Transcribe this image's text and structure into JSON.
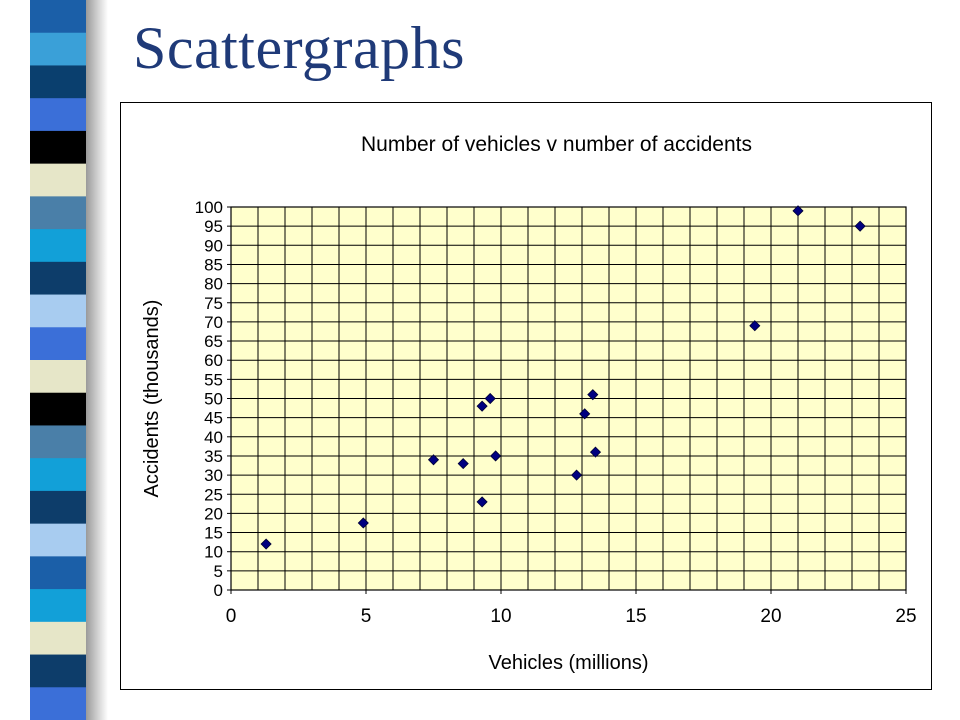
{
  "slide": {
    "title": "Scattergraphs"
  },
  "decor": {
    "stripe_colors": [
      "#1b5fa8",
      "#3aa0d8",
      "#0a3f6e",
      "#3b6fd8",
      "#000000",
      "#e6e6c8",
      "#4a7fa8",
      "#12a0d8",
      "#0d3d6a",
      "#a8ccf0",
      "#3b6fd8",
      "#e6e6c8",
      "#000000",
      "#4a7fa8",
      "#12a0d8",
      "#0d3d6a",
      "#a8ccf0",
      "#1b5fa8",
      "#12a0d8",
      "#e6e6c8",
      "#0d3d6a",
      "#3b6fd8"
    ],
    "plot_background": "#ffffcc",
    "marker_color": "#000080"
  },
  "chart_data": {
    "type": "scatter",
    "title": "Number of vehicles v number of accidents",
    "xlabel": "Vehicles (millions)",
    "ylabel": "Accidents (thousands)",
    "xlim": [
      0,
      25
    ],
    "ylim": [
      0,
      100
    ],
    "x_ticks": [
      "0",
      "5",
      "10",
      "15",
      "20",
      "25"
    ],
    "y_ticks": [
      "0",
      "5",
      "10",
      "15",
      "20",
      "25",
      "30",
      "35",
      "40",
      "45",
      "50",
      "55",
      "60",
      "65",
      "70",
      "75",
      "80",
      "85",
      "90",
      "95",
      "100"
    ],
    "grid": true,
    "legend": "none",
    "points": [
      {
        "x": 1.3,
        "y": 12
      },
      {
        "x": 4.9,
        "y": 17.5
      },
      {
        "x": 7.5,
        "y": 34
      },
      {
        "x": 8.6,
        "y": 33
      },
      {
        "x": 9.3,
        "y": 48
      },
      {
        "x": 9.3,
        "y": 23
      },
      {
        "x": 9.6,
        "y": 50
      },
      {
        "x": 9.8,
        "y": 35
      },
      {
        "x": 12.8,
        "y": 30
      },
      {
        "x": 13.1,
        "y": 46
      },
      {
        "x": 13.4,
        "y": 51
      },
      {
        "x": 13.5,
        "y": 36
      },
      {
        "x": 19.4,
        "y": 69
      },
      {
        "x": 21.0,
        "y": 99
      },
      {
        "x": 23.3,
        "y": 95
      }
    ]
  }
}
